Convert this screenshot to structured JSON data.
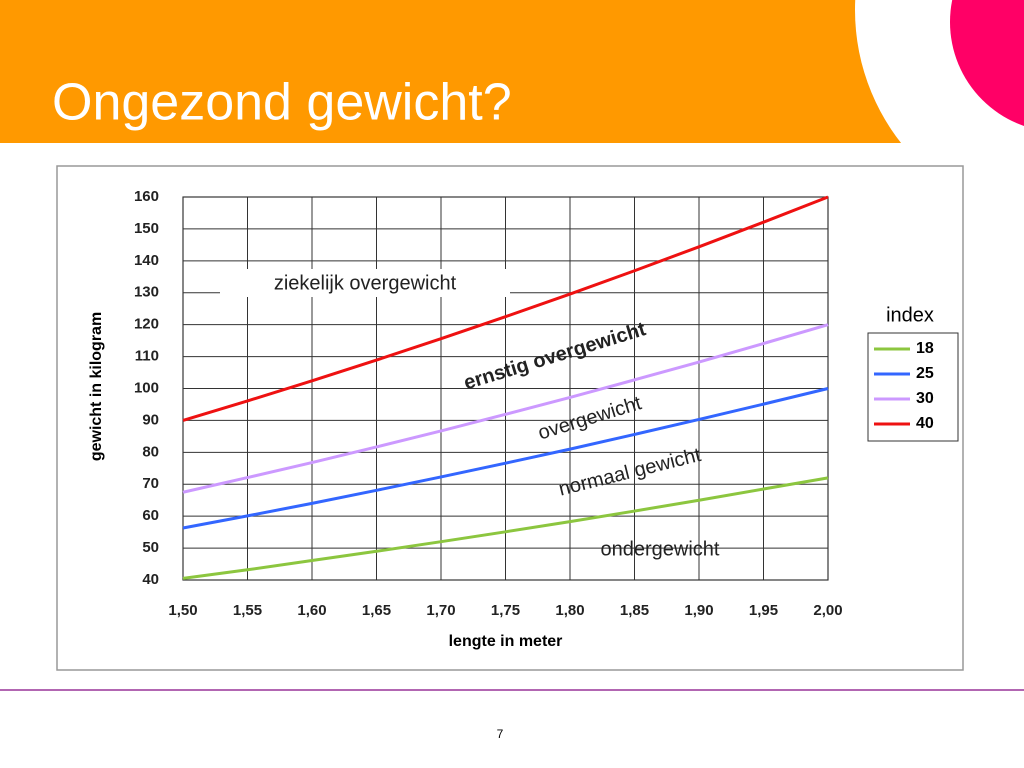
{
  "slide": {
    "title": "Ongezond gewicht?",
    "page_number": 7
  },
  "chart_data": {
    "type": "line",
    "y_label": "gewicht in kilogram",
    "x_label": "lengte in meter",
    "legend_title": "index",
    "legend": "right",
    "grid": true,
    "annotations": [
      "ziekelijk overgewicht",
      "ernstig overgewicht",
      "overgewicht",
      "normaal gewicht",
      "ondergewicht"
    ],
    "x": [
      1.5,
      1.55,
      1.6,
      1.65,
      1.7,
      1.75,
      1.8,
      1.85,
      1.9,
      1.95,
      2.0
    ],
    "xlim": [
      1.5,
      2.0
    ],
    "xticks": [
      {
        "value": 1.5,
        "label": "1,50"
      },
      {
        "value": 1.55,
        "label": "1,55"
      },
      {
        "value": 1.6,
        "label": "1,60"
      },
      {
        "value": 1.65,
        "label": "1,65"
      },
      {
        "value": 1.7,
        "label": "1,70"
      },
      {
        "value": 1.75,
        "label": "1,75"
      },
      {
        "value": 1.8,
        "label": "1,80"
      },
      {
        "value": 1.85,
        "label": "1,85"
      },
      {
        "value": 1.9,
        "label": "1,90"
      },
      {
        "value": 1.95,
        "label": "1,95"
      },
      {
        "value": 2.0,
        "label": "2,00"
      }
    ],
    "ylim": [
      40,
      160
    ],
    "yticks": [
      40,
      50,
      60,
      70,
      80,
      90,
      100,
      110,
      120,
      130,
      140,
      150,
      160
    ],
    "series": [
      {
        "name": "18",
        "color": "#8cc63f",
        "values": [
          40.5,
          43.2,
          46.1,
          49.0,
          52.0,
          55.1,
          58.3,
          61.6,
          65.0,
          68.5,
          72.0
        ]
      },
      {
        "name": "25",
        "color": "#3366ff",
        "values": [
          56.3,
          60.1,
          64.0,
          68.1,
          72.3,
          76.6,
          81.0,
          85.6,
          90.3,
          95.1,
          100.0
        ]
      },
      {
        "name": "30",
        "color": "#cc99ff",
        "values": [
          67.5,
          72.1,
          76.8,
          81.7,
          86.7,
          91.9,
          97.2,
          102.7,
          108.3,
          114.1,
          120.0
        ]
      },
      {
        "name": "40",
        "color": "#ee1111",
        "values": [
          90.0,
          96.1,
          102.4,
          108.9,
          115.6,
          122.5,
          129.6,
          136.9,
          144.4,
          152.1,
          160.0
        ]
      }
    ]
  }
}
